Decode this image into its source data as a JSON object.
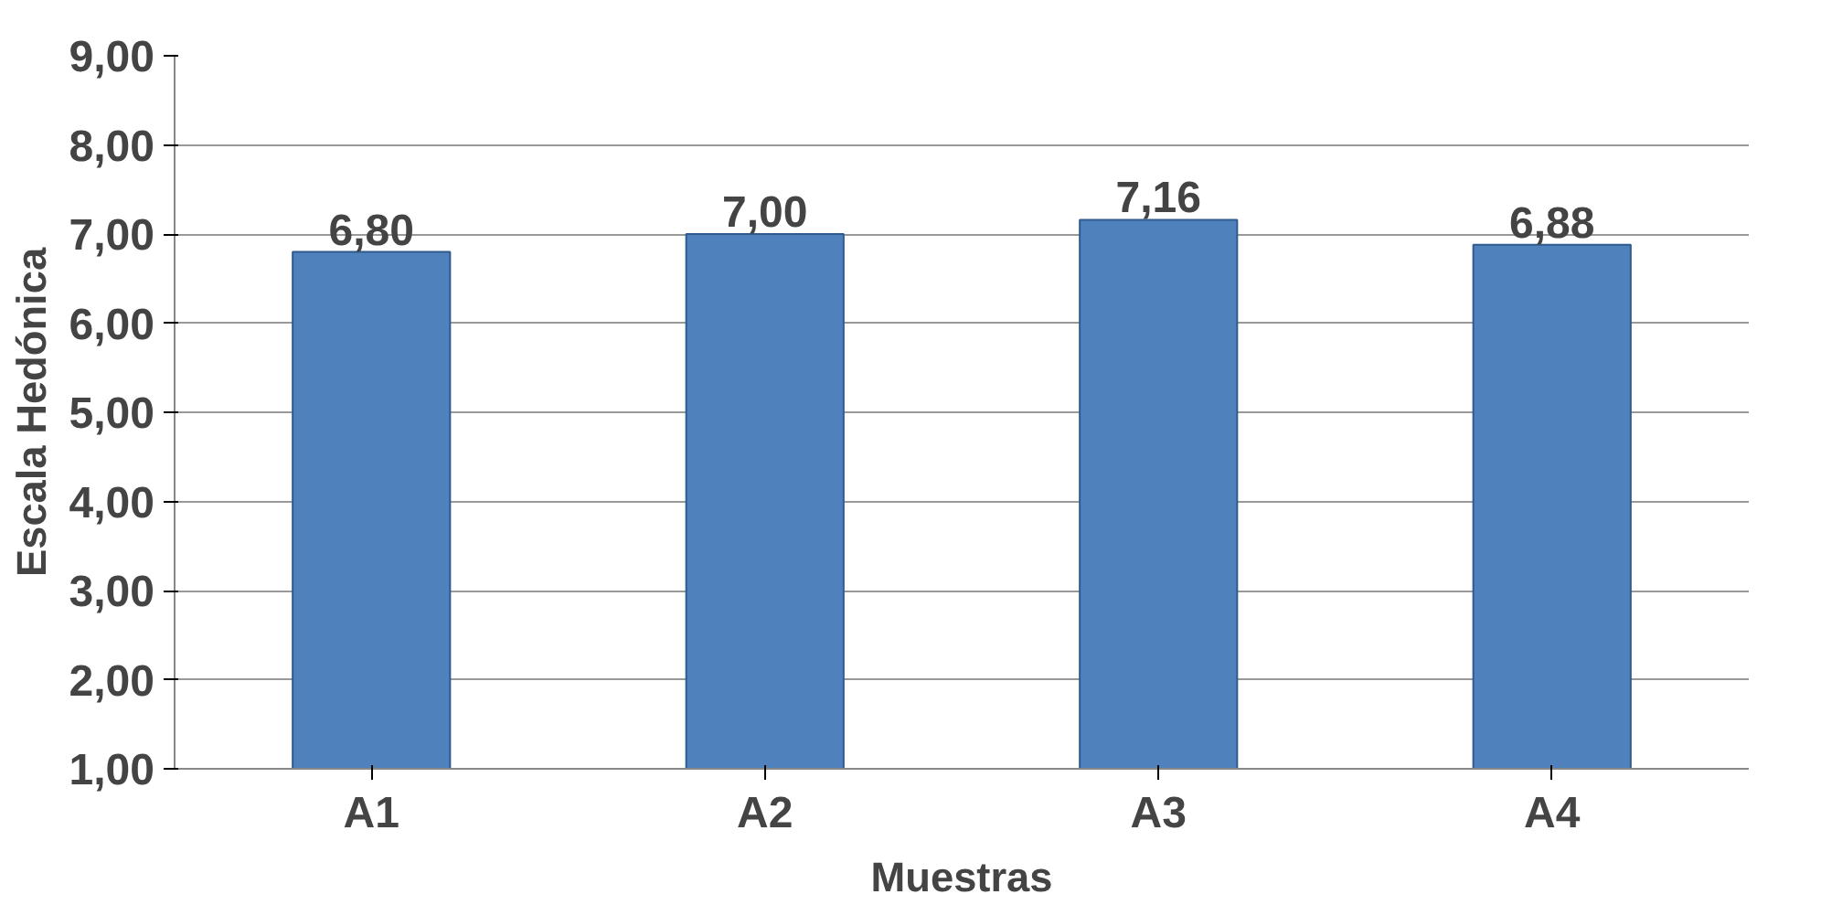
{
  "chart_data": {
    "type": "bar",
    "xlabel": "Muestras",
    "ylabel": "Escala Hedónica",
    "categories": [
      "A1",
      "A2",
      "A3",
      "A4"
    ],
    "values": [
      6.8,
      7.0,
      7.16,
      6.88
    ],
    "value_labels": [
      "6,80",
      "7,00",
      "7,16",
      "6,88"
    ],
    "color": "#4f81bd",
    "ylim": [
      1,
      9
    ],
    "yticks": [
      {
        "value": 1,
        "label": "1,00"
      },
      {
        "value": 2,
        "label": "2,00"
      },
      {
        "value": 3,
        "label": "3,00"
      },
      {
        "value": 4,
        "label": "4,00"
      },
      {
        "value": 5,
        "label": "5,00"
      },
      {
        "value": 6,
        "label": "6,00"
      },
      {
        "value": 7,
        "label": "7,00"
      },
      {
        "value": 8,
        "label": "8,00"
      },
      {
        "value": 9,
        "label": "9,00"
      }
    ],
    "grid": "y"
  }
}
